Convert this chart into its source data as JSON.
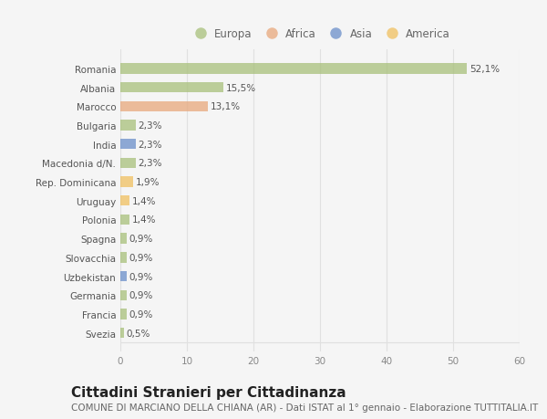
{
  "countries": [
    "Romania",
    "Albania",
    "Marocco",
    "Bulgaria",
    "India",
    "Macedonia d/N.",
    "Rep. Dominicana",
    "Uruguay",
    "Polonia",
    "Spagna",
    "Slovacchia",
    "Uzbekistan",
    "Germania",
    "Francia",
    "Svezia"
  ],
  "values": [
    52.1,
    15.5,
    13.1,
    2.3,
    2.3,
    2.3,
    1.9,
    1.4,
    1.4,
    0.9,
    0.9,
    0.9,
    0.9,
    0.9,
    0.5
  ],
  "labels": [
    "52,1%",
    "15,5%",
    "13,1%",
    "2,3%",
    "2,3%",
    "2,3%",
    "1,9%",
    "1,4%",
    "1,4%",
    "0,9%",
    "0,9%",
    "0,9%",
    "0,9%",
    "0,9%",
    "0,5%"
  ],
  "continents": [
    "Europa",
    "Europa",
    "Africa",
    "Europa",
    "Asia",
    "Europa",
    "America",
    "America",
    "Europa",
    "Europa",
    "Europa",
    "Asia",
    "Europa",
    "Europa",
    "Europa"
  ],
  "continent_colors": {
    "Europa": "#a8c07a",
    "Africa": "#e8a87c",
    "Asia": "#6b8fca",
    "America": "#f0c060"
  },
  "legend_order": [
    "Europa",
    "Africa",
    "Asia",
    "America"
  ],
  "legend_colors": [
    "#a8c07a",
    "#e8a87c",
    "#6b8fca",
    "#f0c060"
  ],
  "title": "Cittadini Stranieri per Cittadinanza",
  "subtitle": "COMUNE DI MARCIANO DELLA CHIANA (AR) - Dati ISTAT al 1° gennaio - Elaborazione TUTTITALIA.IT",
  "xlim": [
    0,
    60
  ],
  "xticks": [
    0,
    10,
    20,
    30,
    40,
    50,
    60
  ],
  "background_color": "#f5f5f5",
  "grid_color": "#e0e0e0",
  "bar_alpha": 0.75,
  "title_fontsize": 11,
  "subtitle_fontsize": 7.5,
  "label_fontsize": 7.5,
  "tick_fontsize": 7.5,
  "legend_fontsize": 8.5
}
